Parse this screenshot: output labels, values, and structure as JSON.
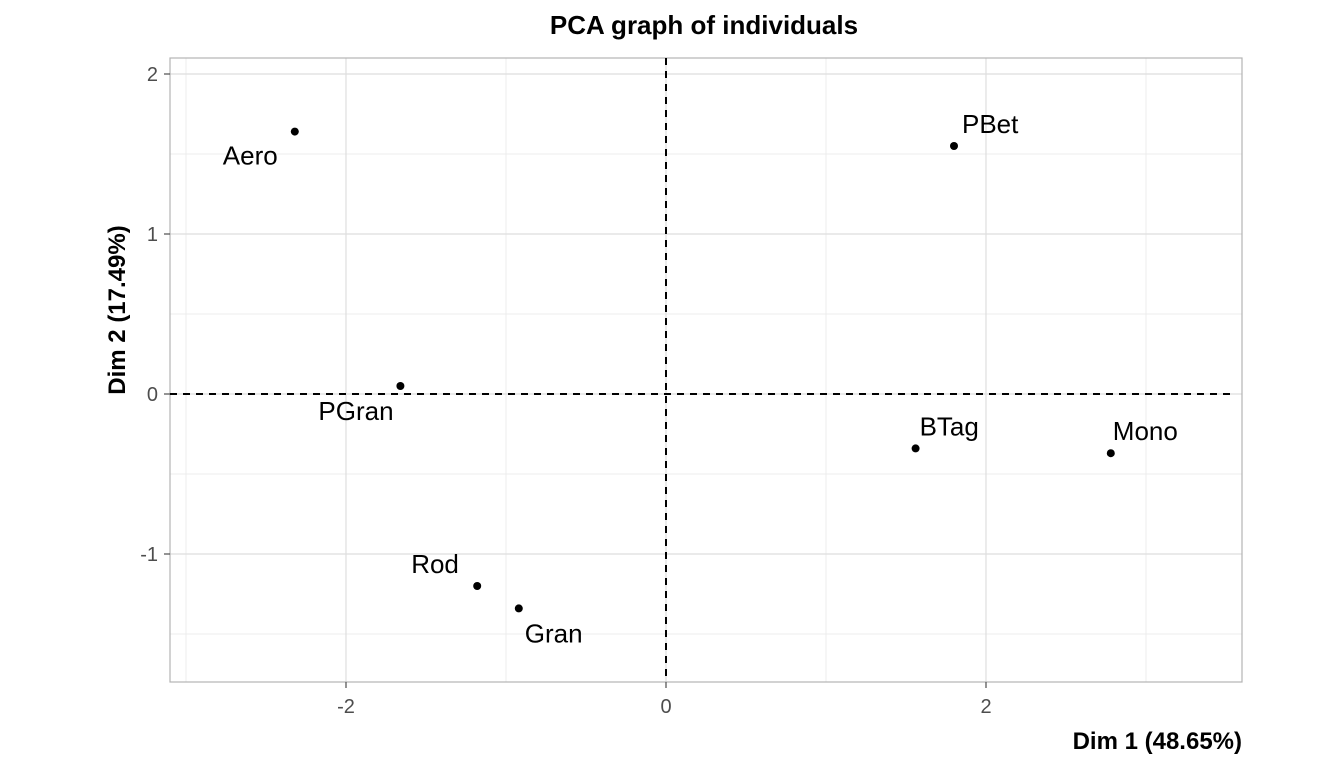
{
  "chart_data": {
    "type": "scatter",
    "title": "PCA graph of individuals",
    "xlabel": "Dim 1 (48.65%)",
    "ylabel": "Dim 2 (17.49%)",
    "xlim": [
      -3.1,
      3.6
    ],
    "ylim": [
      -1.8,
      2.1
    ],
    "xticks": [
      -2,
      0,
      2
    ],
    "yticks": [
      -1,
      0,
      1,
      2
    ],
    "grid": true,
    "reference_lines": {
      "x": 0,
      "y": 0,
      "style": "dashed"
    },
    "points": [
      {
        "label": "Aero",
        "x": -2.32,
        "y": 1.64
      },
      {
        "label": "PBet",
        "x": 1.8,
        "y": 1.55
      },
      {
        "label": "PGran",
        "x": -1.66,
        "y": 0.05
      },
      {
        "label": "BTag",
        "x": 1.56,
        "y": -0.34
      },
      {
        "label": "Mono",
        "x": 2.78,
        "y": -0.37
      },
      {
        "label": "Rod",
        "x": -1.18,
        "y": -1.2
      },
      {
        "label": "Gran",
        "x": -0.92,
        "y": -1.34
      }
    ]
  }
}
